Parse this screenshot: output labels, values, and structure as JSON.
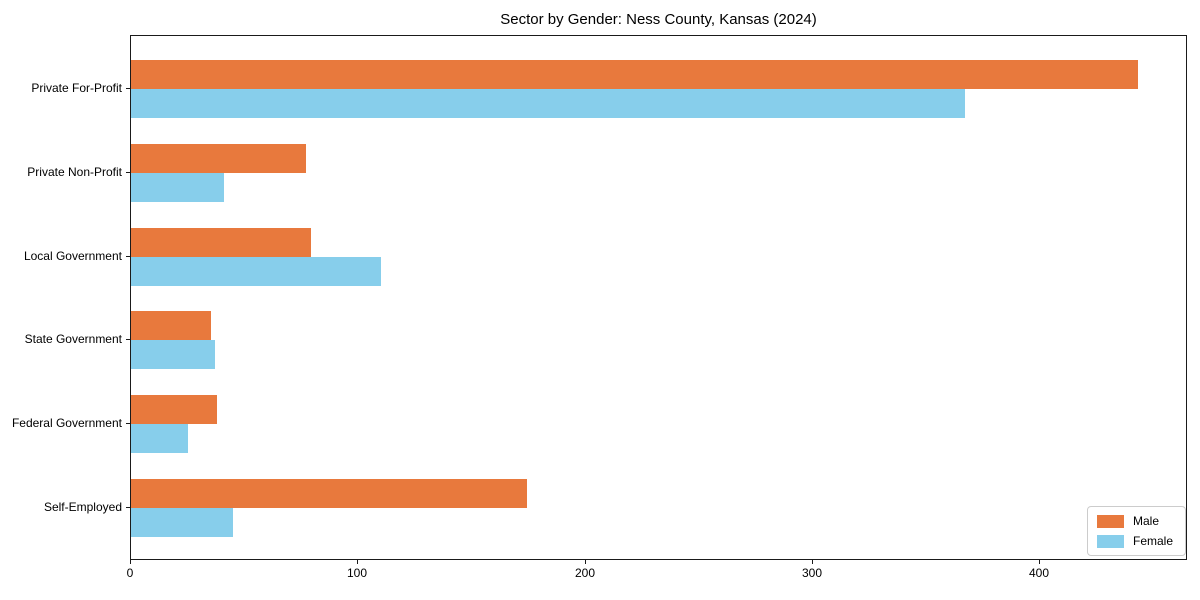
{
  "chart_data": {
    "type": "bar",
    "orientation": "horizontal",
    "title": "Sector by Gender: Ness County, Kansas (2024)",
    "categories": [
      "Private For-Profit",
      "Private Non-Profit",
      "Local Government",
      "State Government",
      "Federal Government",
      "Self-Employed"
    ],
    "series": [
      {
        "name": "Male",
        "color": "#E8793D",
        "values": [
          443,
          77,
          79,
          35,
          38,
          174
        ]
      },
      {
        "name": "Female",
        "color": "#87CEEB",
        "values": [
          367,
          41,
          110,
          37,
          25,
          45
        ]
      }
    ],
    "xlabel": "",
    "ylabel": "",
    "xlim": [
      0,
      465
    ],
    "xticks": [
      0,
      100,
      200,
      300,
      400
    ],
    "grid": false,
    "legend_position": "lower right",
    "bar_height_fraction": 0.35
  }
}
